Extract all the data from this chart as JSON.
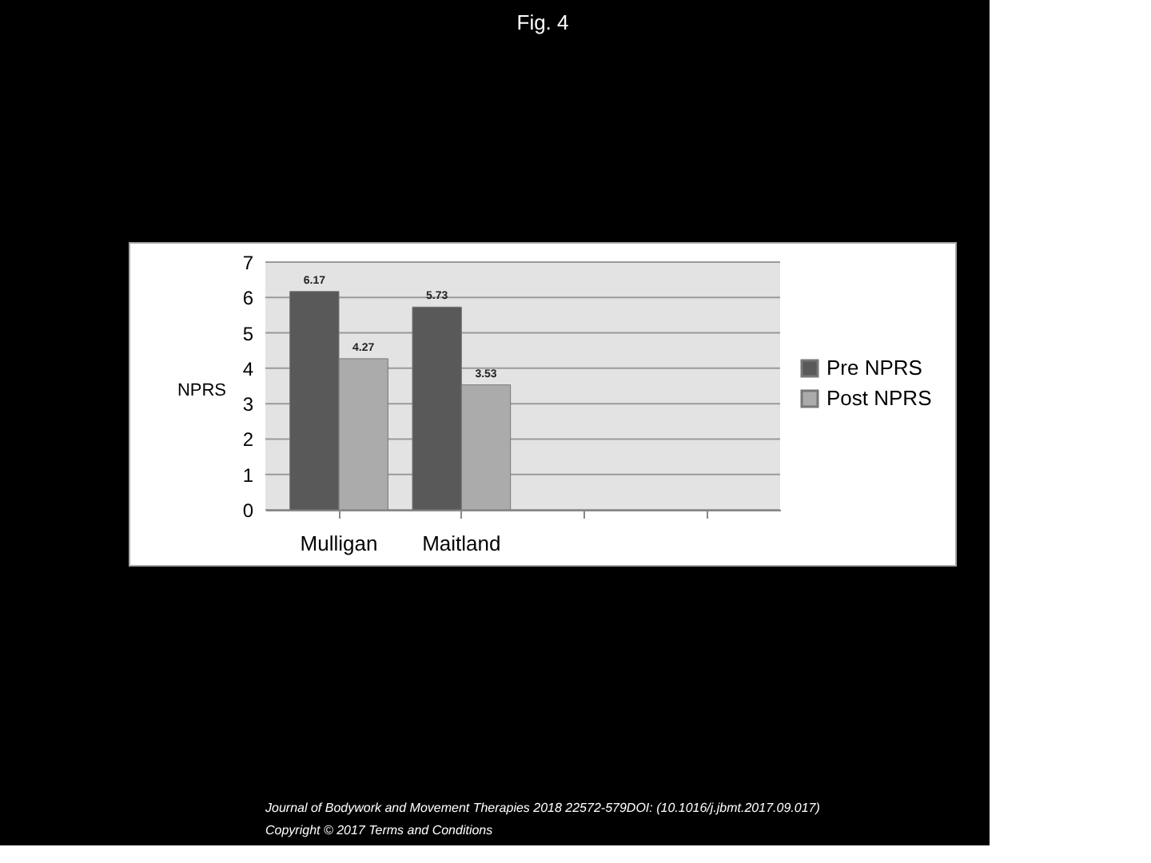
{
  "chart_data": {
    "type": "bar",
    "title": "Fig. 4",
    "ylabel": "NPRS",
    "categories": [
      "Mulligan",
      "Maitland",
      null,
      null
    ],
    "series": [
      {
        "name": "Pre NPRS",
        "color": "#595959",
        "values": [
          6.17,
          5.73,
          null,
          null
        ]
      },
      {
        "name": "Post NPRS",
        "color": "#ababab",
        "values": [
          4.27,
          3.53,
          null,
          null
        ]
      }
    ],
    "ylim": [
      0,
      7
    ],
    "yticks": [
      0,
      1,
      2,
      3,
      4,
      5,
      6,
      7
    ],
    "grid": "y",
    "legend": "right",
    "data_labels": true,
    "annotations": [
      "Journal of Bodywork and Movement Therapies 2018 22572-579DOI: (10.1016/j.jbmt.2017.09.017)",
      "Copyright © 2017 Terms and Conditions"
    ]
  }
}
